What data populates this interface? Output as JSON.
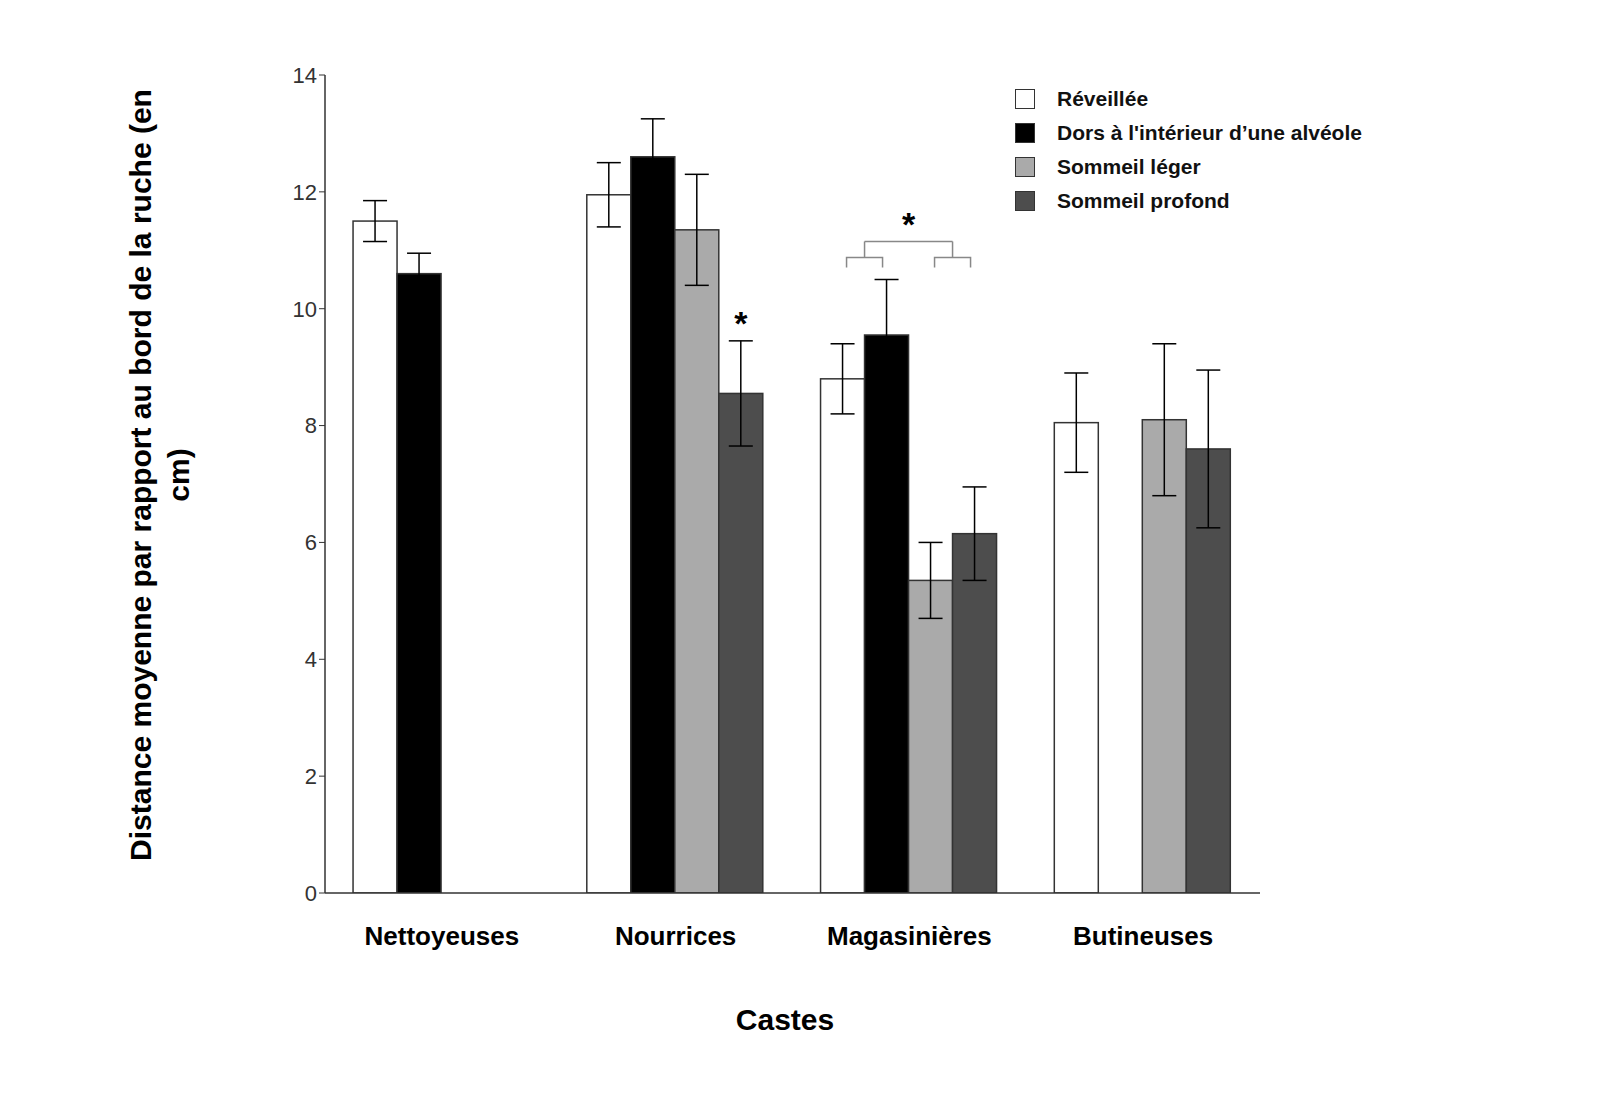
{
  "chart_data": {
    "type": "bar",
    "x_label": "Castes",
    "y_label": "Distance moyenne par rapport au bord de la ruche (en cm)",
    "categories": [
      "Nettoyeuses",
      "Nourrices",
      "Magasinières",
      "Butineuses"
    ],
    "series": [
      {
        "name": "Réveillée",
        "color": "#ffffff",
        "values": [
          11.5,
          11.95,
          8.8,
          8.05
        ],
        "errors": [
          0.35,
          0.55,
          0.6,
          0.85
        ]
      },
      {
        "name": "Dors à l'intérieur d’une alvéole",
        "color": "#000000",
        "values": [
          10.6,
          12.6,
          9.55,
          null
        ],
        "errors": [
          0.35,
          0.65,
          0.95,
          null
        ]
      },
      {
        "name": "Sommeil léger",
        "color": "#aaaaaa",
        "values": [
          null,
          11.35,
          5.35,
          8.1
        ],
        "errors": [
          null,
          0.95,
          0.65,
          1.3
        ]
      },
      {
        "name": "Sommeil profond",
        "color": "#4d4d4d",
        "values": [
          null,
          8.55,
          6.15,
          7.6
        ],
        "errors": [
          null,
          0.9,
          0.8,
          1.35
        ]
      }
    ],
    "ylim": [
      0,
      14
    ],
    "yticks": [
      0,
      2,
      4,
      6,
      8,
      10,
      12,
      14
    ],
    "legend": "upper right",
    "annotations": [
      {
        "text": "*",
        "category": "Nourrices",
        "series": "Sommeil profond"
      },
      {
        "text": "*",
        "category": "Magasinières",
        "groups": [
          [
            "Réveillée",
            "Dors à l'intérieur d’une alvéole"
          ],
          [
            "Sommeil léger",
            "Sommeil profond"
          ]
        ]
      }
    ]
  }
}
